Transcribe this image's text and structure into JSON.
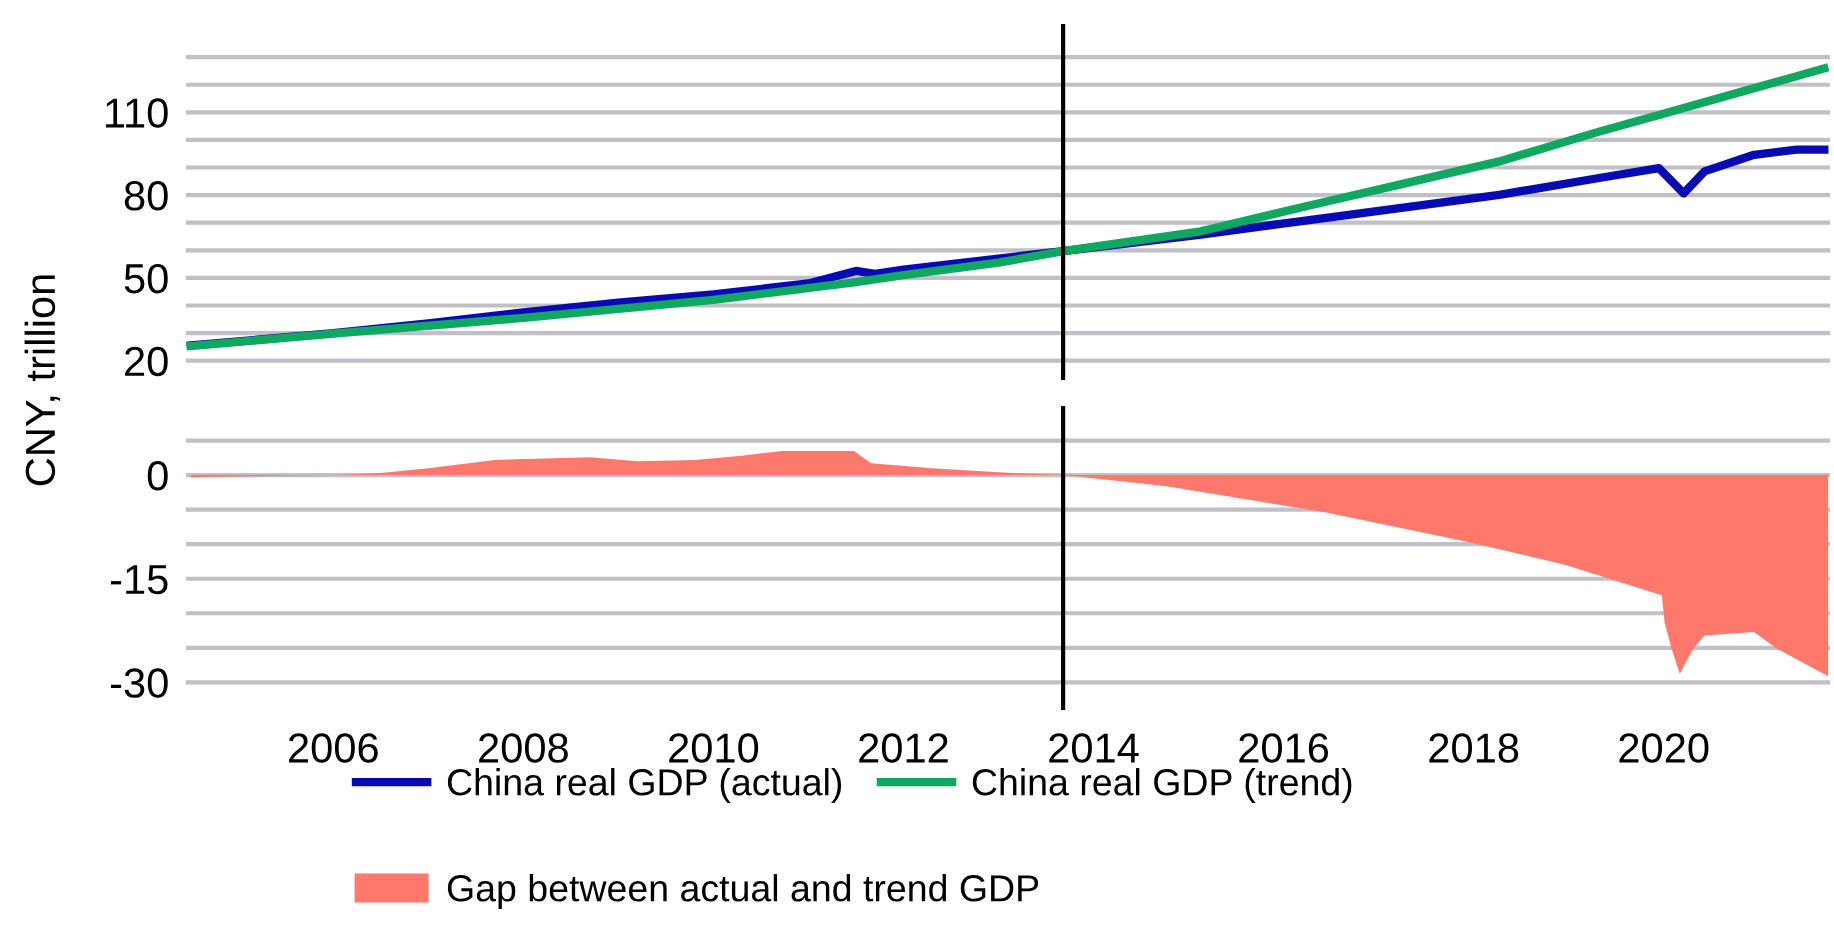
{
  "chart_data": [
    {
      "type": "line",
      "ylabel": "CNY, trillion",
      "tick_labels": "y",
      "grid": "y",
      "line_style": "solid",
      "legend": "bottom",
      "xlim": [
        2004.45,
        2021.75
      ],
      "ylim": [
        13,
        142
      ],
      "yticks": [
        20,
        {
          "value": 30,
          "label": null
        },
        {
          "value": 40,
          "label": null
        },
        50,
        {
          "value": 60,
          "label": null
        },
        {
          "value": 70,
          "label": null
        },
        80,
        {
          "value": 90,
          "label": null
        },
        {
          "value": 100,
          "label": null
        },
        110,
        {
          "value": 120,
          "label": null
        },
        {
          "value": 130,
          "label": null
        }
      ],
      "ref_lines": [
        {
          "axis": "x",
          "value": 2013.68,
          "color": "#000000"
        }
      ],
      "series": [
        {
          "name": "China real GDP (actual)",
          "color": "#0a0ab4",
          "x": [
            2004.5,
            2006,
            2007,
            2008,
            2009,
            2010,
            2011,
            2011.5,
            2011.7,
            2012,
            2013,
            2013.68,
            2015.13,
            2016.17,
            2018.27,
            2019.32,
            2019.95,
            2020.21,
            2020.43,
            2020.95,
            2021.4,
            2021.69
          ],
          "values": [
            25.5,
            30,
            33.5,
            37.5,
            41,
            44,
            48,
            52.5,
            51.5,
            53,
            57,
            59.7,
            65.7,
            70.5,
            80.1,
            86.2,
            89.8,
            80.6,
            88.6,
            94.6,
            96.5,
            96.5
          ]
        },
        {
          "name": "China real GDP (trend)",
          "color": "#10a860",
          "x": [
            2004.5,
            2006,
            2008,
            2010,
            2011.5,
            2012,
            2013,
            2013.68,
            2015.13,
            2016.17,
            2017.22,
            2018.27,
            2019.32,
            2019.95,
            2021.69
          ],
          "values": [
            25.3,
            29.8,
            35.5,
            42,
            48.5,
            51,
            55.5,
            59.7,
            66.9,
            75.4,
            83.8,
            92.2,
            103,
            109,
            125.9
          ]
        }
      ]
    },
    {
      "type": "area",
      "grid": "y",
      "legend": "bottom",
      "xlim": [
        2004.45,
        2021.75
      ],
      "ylim": [
        -34,
        10
      ],
      "xticks": [
        2006,
        2008,
        2010,
        2012,
        2014,
        2016,
        2018,
        2020
      ],
      "yticks": [
        {
          "value": 5,
          "label": null
        },
        0,
        {
          "value": -5,
          "label": null
        },
        {
          "value": -10,
          "label": null
        },
        -15,
        {
          "value": -20,
          "label": null
        },
        {
          "value": -25,
          "label": null
        },
        -30
      ],
      "ref_lines": [
        {
          "axis": "x",
          "value": 2013.68,
          "color": "#000000"
        }
      ],
      "series": [
        {
          "name": "Gap between actual and trend GDP",
          "color": "#fe796b",
          "x": [
            2004.5,
            2006,
            2006.5,
            2007,
            2007.7,
            2008.7,
            2009.2,
            2009.8,
            2010.3,
            2010.72,
            2011.48,
            2011.66,
            2012.3,
            2013,
            2013.68,
            2014.77,
            2016.45,
            2017.92,
            2018.97,
            2019.98,
            2020.01,
            2020.08,
            2020.17,
            2020.24,
            2020.32,
            2020.43,
            2020.95,
            2021.2,
            2021.73
          ],
          "values": [
            -0.3,
            0,
            0.3,
            1,
            2.2,
            2.6,
            2,
            2.2,
            2.8,
            3.5,
            3.5,
            1.7,
            1,
            0.4,
            0,
            -1.6,
            -5.4,
            -9.6,
            -13,
            -17.4,
            -21.3,
            -25,
            -28.8,
            -26.9,
            -25,
            -23.2,
            -22.7,
            -25.2,
            -29.1
          ]
        }
      ]
    }
  ]
}
